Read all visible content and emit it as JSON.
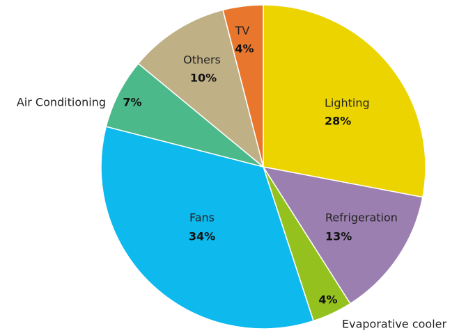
{
  "chart_data": {
    "type": "pie",
    "categories": [
      "Lighting",
      "Refrigeration",
      "Evaporative cooler",
      "Fans",
      "Air Conditioning",
      "Others",
      "TV"
    ],
    "values": [
      28,
      13,
      4,
      34,
      7,
      10,
      4
    ],
    "value_labels": [
      "28%",
      "13%",
      "4%",
      "34%",
      "7%",
      "10%",
      "4%"
    ],
    "colors": [
      "#ecd400",
      "#9b7fb0",
      "#95c11f",
      "#0db9ed",
      "#4cb98b",
      "#c0b086",
      "#e8772d"
    ]
  }
}
